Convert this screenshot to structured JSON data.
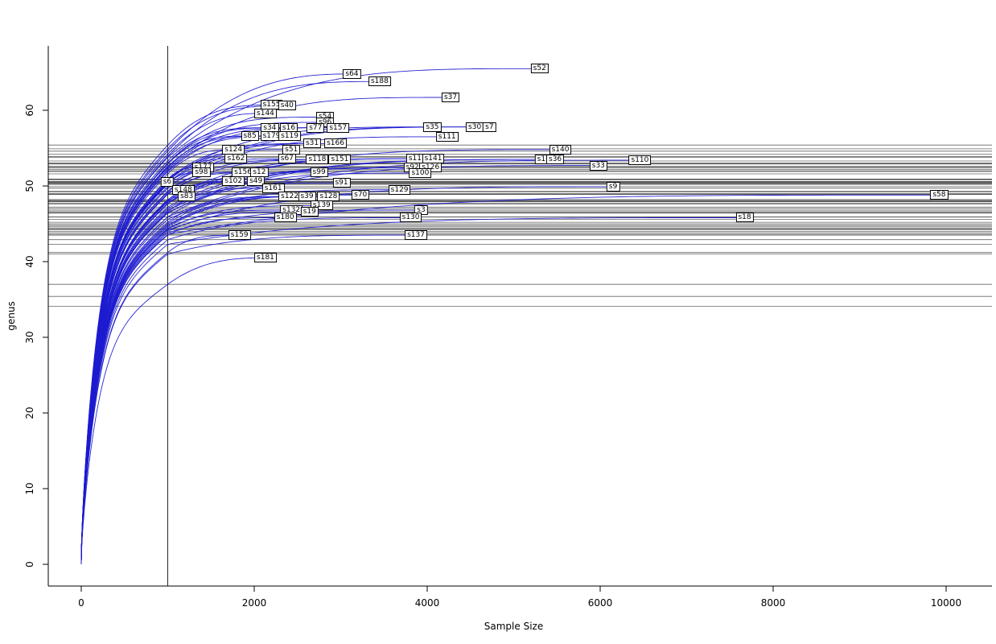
{
  "chart_data": {
    "type": "line",
    "title": "",
    "xlabel": "Sample Size",
    "ylabel": "genus",
    "xlim": [
      0,
      10300
    ],
    "ylim": [
      0,
      67
    ],
    "x_ticks": [
      0,
      2000,
      4000,
      6000,
      8000,
      10000
    ],
    "y_ticks": [
      0,
      10,
      20,
      30,
      40,
      50,
      60
    ],
    "grid": "off",
    "legend": "none",
    "curve_color": "#1d1bd0",
    "reference_line_color": "#262626",
    "axis_color": "#000000",
    "sample_line_x": 1000,
    "extra_hlines": [
      35.4,
      34.1
    ],
    "series": [
      {
        "name": "s52",
        "x_end": 5300,
        "y_end": 65.5,
        "y_rarefied": 53.8
      },
      {
        "name": "s64",
        "x_end": 3130,
        "y_end": 64.8,
        "y_rarefied": 54.6
      },
      {
        "name": "s188",
        "x_end": 3450,
        "y_end": 63.8,
        "y_rarefied": 53.9
      },
      {
        "name": "s37",
        "x_end": 4270,
        "y_end": 61.7,
        "y_rarefied": 52.6
      },
      {
        "name": "s155",
        "x_end": 2200,
        "y_end": 60.7,
        "y_rarefied": 55.4
      },
      {
        "name": "s40",
        "x_end": 2380,
        "y_end": 60.6,
        "y_rarefied": 54.9
      },
      {
        "name": "s144",
        "x_end": 2130,
        "y_end": 59.6,
        "y_rarefied": 54.2
      },
      {
        "name": "s54",
        "x_end": 2820,
        "y_end": 59.1,
        "y_rarefied": 53.0
      },
      {
        "name": "s96",
        "x_end": 2820,
        "y_end": 58.4,
        "y_rarefied": 52.4
      },
      {
        "name": "s34",
        "x_end": 2180,
        "y_end": 57.7,
        "y_rarefied": 53.3
      },
      {
        "name": "s16",
        "x_end": 2400,
        "y_end": 57.7,
        "y_rarefied": 53.0
      },
      {
        "name": "s77",
        "x_end": 2710,
        "y_end": 57.7,
        "y_rarefied": 52.2
      },
      {
        "name": "s157",
        "x_end": 2970,
        "y_end": 57.7,
        "y_rarefied": 51.9
      },
      {
        "name": "s35",
        "x_end": 4060,
        "y_end": 57.8,
        "y_rarefied": 50.9
      },
      {
        "name": "s30",
        "x_end": 4550,
        "y_end": 57.8,
        "y_rarefied": 50.5
      },
      {
        "name": "s7",
        "x_end": 4720,
        "y_end": 57.8,
        "y_rarefied": 50.2
      },
      {
        "name": "s85",
        "x_end": 1950,
        "y_end": 56.6,
        "y_rarefied": 52.9
      },
      {
        "name": "s179",
        "x_end": 2200,
        "y_end": 56.6,
        "y_rarefied": 52.5
      },
      {
        "name": "s119",
        "x_end": 2410,
        "y_end": 56.6,
        "y_rarefied": 52.0
      },
      {
        "name": "s111",
        "x_end": 4230,
        "y_end": 56.5,
        "y_rarefied": 49.9
      },
      {
        "name": "s31",
        "x_end": 2670,
        "y_end": 55.6,
        "y_rarefied": 50.8
      },
      {
        "name": "s166",
        "x_end": 2940,
        "y_end": 55.6,
        "y_rarefied": 50.4
      },
      {
        "name": "s124",
        "x_end": 1760,
        "y_end": 54.8,
        "y_rarefied": 51.6
      },
      {
        "name": "s51",
        "x_end": 2430,
        "y_end": 54.8,
        "y_rarefied": 50.6
      },
      {
        "name": "s140",
        "x_end": 5540,
        "y_end": 54.8,
        "y_rarefied": 47.9
      },
      {
        "name": "s162",
        "x_end": 1790,
        "y_end": 53.6,
        "y_rarefied": 50.6
      },
      {
        "name": "s67",
        "x_end": 2380,
        "y_end": 53.6,
        "y_rarefied": 49.7
      },
      {
        "name": "s118",
        "x_end": 2730,
        "y_end": 53.5,
        "y_rarefied": 49.2
      },
      {
        "name": "s151",
        "x_end": 2990,
        "y_end": 53.5,
        "y_rarefied": 48.9
      },
      {
        "name": "s11",
        "x_end": 3860,
        "y_end": 53.6,
        "y_rarefied": 48.2
      },
      {
        "name": "s141",
        "x_end": 4070,
        "y_end": 53.6,
        "y_rarefied": 47.7
      },
      {
        "name": "s1",
        "x_end": 5320,
        "y_end": 53.5,
        "y_rarefied": 46.8
      },
      {
        "name": "s36",
        "x_end": 5480,
        "y_end": 53.5,
        "y_rarefied": 46.5
      },
      {
        "name": "s110",
        "x_end": 6460,
        "y_end": 53.4,
        "y_rarefied": 45.9
      },
      {
        "name": "s33",
        "x_end": 5980,
        "y_end": 52.7,
        "y_rarefied": 45.6
      },
      {
        "name": "s177",
        "x_end": 1410,
        "y_end": 52.5,
        "y_rarefied": 50.9
      },
      {
        "name": "s92",
        "x_end": 3830,
        "y_end": 52.4,
        "y_rarefied": 47.2
      },
      {
        "name": "s126",
        "x_end": 4040,
        "y_end": 52.4,
        "y_rarefied": 47.0
      },
      {
        "name": "s98",
        "x_end": 1390,
        "y_end": 51.8,
        "y_rarefied": 50.3
      },
      {
        "name": "s156",
        "x_end": 1870,
        "y_end": 51.8,
        "y_rarefied": 49.3
      },
      {
        "name": "s12",
        "x_end": 2060,
        "y_end": 51.8,
        "y_rarefied": 48.9
      },
      {
        "name": "s99",
        "x_end": 2750,
        "y_end": 51.8,
        "y_rarefied": 48.0
      },
      {
        "name": "s100",
        "x_end": 3920,
        "y_end": 51.7,
        "y_rarefied": 46.4
      },
      {
        "name": "s6",
        "x_end": 995,
        "y_end": 50.5,
        "y_rarefied": 50.4
      },
      {
        "name": "s148",
        "x_end": 1180,
        "y_end": 49.5,
        "y_rarefied": 49.0
      },
      {
        "name": "s102",
        "x_end": 1760,
        "y_end": 50.6,
        "y_rarefied": 48.1
      },
      {
        "name": "s49",
        "x_end": 2020,
        "y_end": 50.6,
        "y_rarefied": 47.6
      },
      {
        "name": "s161",
        "x_end": 2220,
        "y_end": 49.7,
        "y_rarefied": 46.6
      },
      {
        "name": "s91",
        "x_end": 3010,
        "y_end": 50.4,
        "y_rarefied": 45.9
      },
      {
        "name": "s129",
        "x_end": 3680,
        "y_end": 49.5,
        "y_rarefied": 44.8
      },
      {
        "name": "s9",
        "x_end": 6150,
        "y_end": 49.9,
        "y_rarefied": 44.2
      },
      {
        "name": "s83",
        "x_end": 1220,
        "y_end": 48.6,
        "y_rarefied": 48.0
      },
      {
        "name": "s122",
        "x_end": 2410,
        "y_end": 48.6,
        "y_rarefied": 45.2
      },
      {
        "name": "s39",
        "x_end": 2610,
        "y_end": 48.6,
        "y_rarefied": 45.0
      },
      {
        "name": "s128",
        "x_end": 2860,
        "y_end": 48.6,
        "y_rarefied": 44.8
      },
      {
        "name": "s70",
        "x_end": 3230,
        "y_end": 48.8,
        "y_rarefied": 44.6
      },
      {
        "name": "s58",
        "x_end": 9920,
        "y_end": 48.8,
        "y_rarefied": 43.6
      },
      {
        "name": "s132",
        "x_end": 2430,
        "y_end": 46.8,
        "y_rarefied": 44.4
      },
      {
        "name": "s139",
        "x_end": 2780,
        "y_end": 47.4,
        "y_rarefied": 44.3
      },
      {
        "name": "s19",
        "x_end": 2640,
        "y_end": 46.6,
        "y_rarefied": 44.0
      },
      {
        "name": "s3",
        "x_end": 3930,
        "y_end": 46.8,
        "y_rarefied": 43.8
      },
      {
        "name": "s180",
        "x_end": 2360,
        "y_end": 45.8,
        "y_rarefied": 43.5
      },
      {
        "name": "s130",
        "x_end": 3810,
        "y_end": 45.8,
        "y_rarefied": 42.9
      },
      {
        "name": "s18",
        "x_end": 7670,
        "y_end": 45.8,
        "y_rarefied": 42.3
      },
      {
        "name": "s159",
        "x_end": 1830,
        "y_end": 43.5,
        "y_rarefied": 41.2
      },
      {
        "name": "s137",
        "x_end": 3870,
        "y_end": 43.5,
        "y_rarefied": 41.0
      },
      {
        "name": "s181",
        "x_end": 2130,
        "y_end": 40.5,
        "y_rarefied": 37.0
      }
    ]
  }
}
